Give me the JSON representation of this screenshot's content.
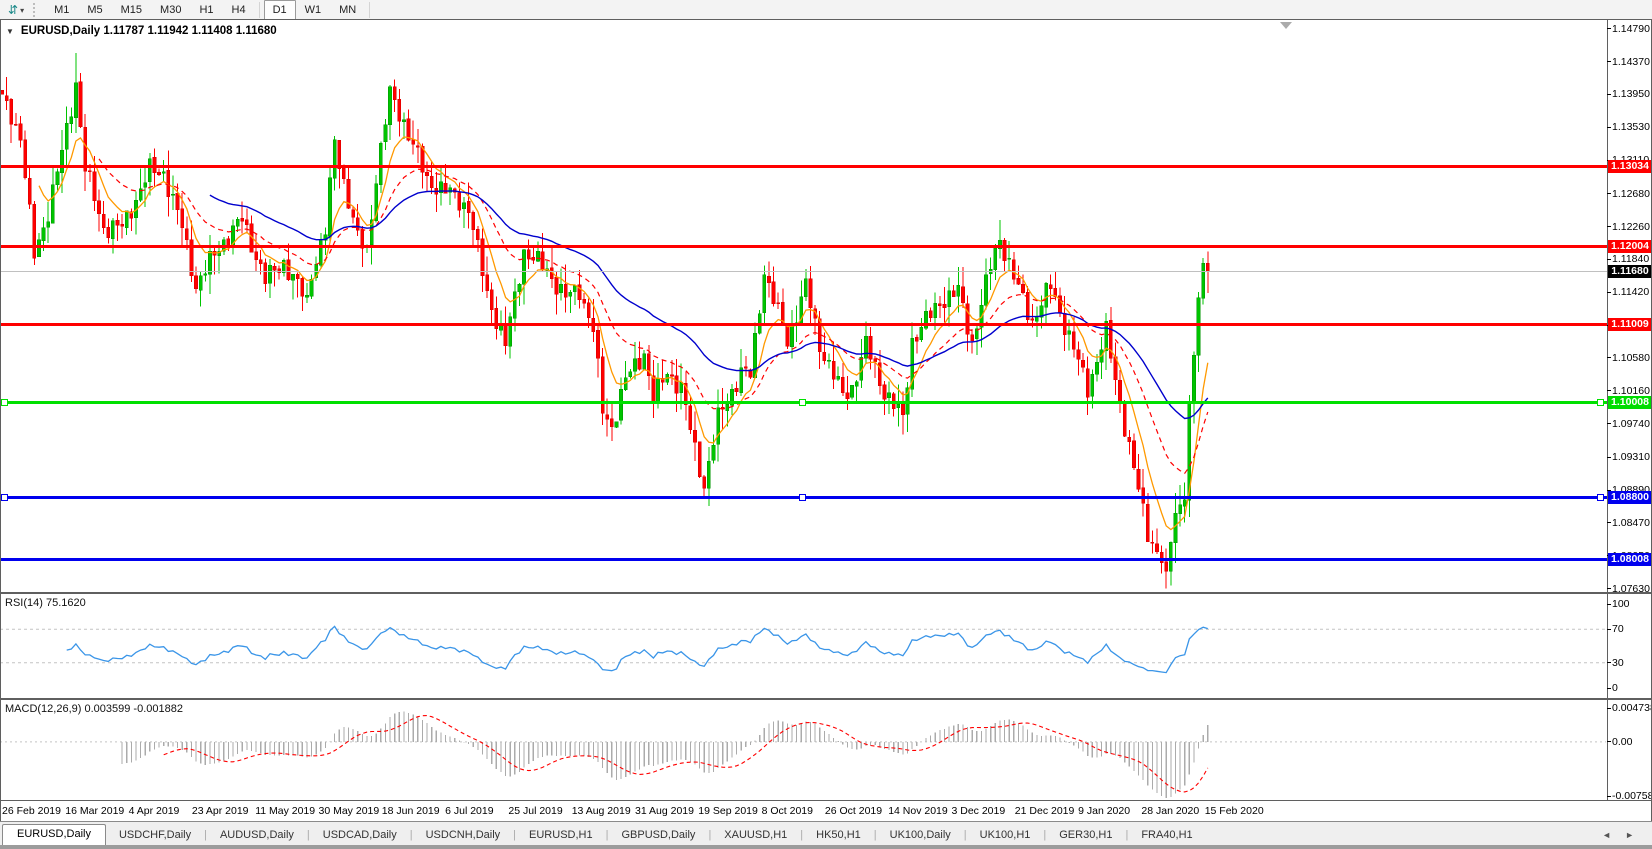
{
  "toolbar": {
    "chart_type_icon": "⇵",
    "dropdown_icon": "▾",
    "timeframes": [
      "M1",
      "M5",
      "M15",
      "M30",
      "H1",
      "H4",
      "D1",
      "W1",
      "MN"
    ],
    "active_timeframe": "D1"
  },
  "chart": {
    "collapse_icon": "▼",
    "title_text": "EURUSD,Daily  1.11787 1.11942 1.11408 1.11680",
    "price_axis_ticks": [
      "1.14790",
      "1.14370",
      "1.13950",
      "1.13530",
      "1.13110",
      "1.12680",
      "1.12260",
      "1.11840",
      "1.11420",
      "1.11000",
      "1.10580",
      "1.10160",
      "1.09740",
      "1.09310",
      "1.08890",
      "1.08470",
      "1.08050",
      "1.07630"
    ],
    "price_tags": [
      {
        "text": "1.13034",
        "value": 1.13034,
        "bg": "#FF0000",
        "fg": "#FFFFFF"
      },
      {
        "text": "1.12004",
        "value": 1.12004,
        "bg": "#FF0000",
        "fg": "#FFFFFF"
      },
      {
        "text": "1.11009",
        "value": 1.11009,
        "bg": "#FF0000",
        "fg": "#FFFFFF"
      },
      {
        "text": "1.10008",
        "value": 1.10008,
        "bg": "#00DD00",
        "fg": "#FFFFFF"
      },
      {
        "text": "1.08800",
        "value": 1.088,
        "bg": "#0000EE",
        "fg": "#FFFFFF"
      },
      {
        "text": "1.08008",
        "value": 1.08008,
        "bg": "#0000EE",
        "fg": "#FFFFFF"
      },
      {
        "text": "1.11680",
        "value": 1.1168,
        "bg": "#000000",
        "fg": "#FFFFFF"
      }
    ]
  },
  "rsi_panel": {
    "label": "RSI(14) 75.1620",
    "axis_labels": [
      "100",
      "70",
      "30",
      "0"
    ],
    "line_color": "#3A95E8"
  },
  "macd_panel": {
    "label": "MACD(12,26,9) 0.003599 -0.001882",
    "axis_labels": [
      "0.004738",
      "0.00",
      "-0.007584"
    ]
  },
  "tabbar": {
    "tabs": [
      "EURUSD,Daily",
      "USDCHF,Daily",
      "AUDUSD,Daily",
      "USDCAD,Daily",
      "USDCNH,Daily",
      "EURUSD,H1",
      "GBPUSD,Daily",
      "XAUUSD,H1",
      "HK50,H1",
      "UK100,Daily",
      "UK100,H1",
      "GER30,H1",
      "FRA40,H1"
    ],
    "active_tab": "EURUSD,Daily",
    "scroll_left_icon": "◄",
    "scroll_right_icon": "►"
  },
  "chart_data": {
    "type": "candlestick",
    "symbol": "EURUSD",
    "timeframe": "Daily",
    "last_ohlc": {
      "open": 1.11787,
      "high": 1.11942,
      "low": 1.11408,
      "close": 1.1168
    },
    "x_axis": {
      "labels": [
        "26 Feb 2019",
        "16 Mar 2019",
        "4 Apr 2019",
        "23 Apr 2019",
        "11 May 2019",
        "30 May 2019",
        "18 Jun 2019",
        "6 Jul 2019",
        "25 Jul 2019",
        "13 Aug 2019",
        "31 Aug 2019",
        "19 Sep 2019",
        "8 Oct 2019",
        "26 Oct 2019",
        "14 Nov 2019",
        "3 Dec 2019",
        "21 Dec 2019",
        "9 Jan 2020",
        "28 Jan 2020",
        "15 Feb 2020"
      ]
    },
    "y_axis": {
      "ticks": [
        1.1479,
        1.1437,
        1.1395,
        1.1353,
        1.1311,
        1.1268,
        1.1226,
        1.1184,
        1.1142,
        1.11,
        1.1058,
        1.1016,
        1.0974,
        1.0931,
        1.0889,
        1.0847,
        1.0805,
        1.0763
      ]
    },
    "horizontal_lines": [
      {
        "price": 1.13034,
        "color": "#FF0000",
        "width": 3,
        "handles": false
      },
      {
        "price": 1.12004,
        "color": "#FF0000",
        "width": 3,
        "handles": false
      },
      {
        "price": 1.11009,
        "color": "#FF0000",
        "width": 3,
        "handles": false
      },
      {
        "price": 1.10008,
        "color": "#00E000",
        "width": 3,
        "handles": true
      },
      {
        "price": 1.088,
        "color": "#0000EE",
        "width": 3,
        "handles": true
      },
      {
        "price": 1.08008,
        "color": "#0000EE",
        "width": 3,
        "handles": false
      }
    ],
    "current_price": {
      "value": 1.1168,
      "line_color": "#C0C0C0"
    },
    "candles": {
      "count": 262,
      "first_open": 1.14,
      "up_color": "#00C400",
      "up_stroke": "#009400",
      "down_color": "#FF0000",
      "down_stroke": "#D40000",
      "close_anchors": [
        [
          0,
          1.139
        ],
        [
          2,
          1.137
        ],
        [
          4,
          1.134
        ],
        [
          7,
          1.119
        ],
        [
          10,
          1.1245
        ],
        [
          13,
          1.132
        ],
        [
          16,
          1.141
        ],
        [
          18,
          1.13
        ],
        [
          22,
          1.1225
        ],
        [
          26,
          1.1225
        ],
        [
          32,
          1.1298
        ],
        [
          35,
          1.1295
        ],
        [
          39,
          1.1225
        ],
        [
          42,
          1.115
        ],
        [
          47,
          1.12
        ],
        [
          52,
          1.1235
        ],
        [
          57,
          1.1158
        ],
        [
          61,
          1.118
        ],
        [
          66,
          1.113
        ],
        [
          67,
          1.1168
        ],
        [
          70,
          1.122
        ],
        [
          72,
          1.1334
        ],
        [
          77,
          1.121
        ],
        [
          79,
          1.1195
        ],
        [
          81,
          1.129
        ],
        [
          84,
          1.1395
        ],
        [
          87,
          1.136
        ],
        [
          92,
          1.1285
        ],
        [
          97,
          1.1268
        ],
        [
          101,
          1.125
        ],
        [
          105,
          1.114
        ],
        [
          109,
          1.1075
        ],
        [
          113,
          1.1195
        ],
        [
          118,
          1.117
        ],
        [
          122,
          1.1135
        ],
        [
          125,
          1.1145
        ],
        [
          128,
          1.1095
        ],
        [
          130,
          1.099
        ],
        [
          132,
          1.097
        ],
        [
          135,
          1.103
        ],
        [
          139,
          1.1065
        ],
        [
          141,
          1.1005
        ],
        [
          144,
          1.104
        ],
        [
          147,
          1.102
        ],
        [
          150,
          1.094
        ],
        [
          152,
          1.0895
        ],
        [
          155,
          1.098
        ],
        [
          160,
          1.104
        ],
        [
          162,
          1.1035
        ],
        [
          165,
          1.117
        ],
        [
          166,
          1.115
        ],
        [
          170,
          1.108
        ],
        [
          174,
          1.115
        ],
        [
          177,
          1.1075
        ],
        [
          182,
          1.101
        ],
        [
          184,
          1.102
        ],
        [
          187,
          1.1075
        ],
        [
          191,
          1.1015
        ],
        [
          195,
          1.098
        ],
        [
          197,
          1.108
        ],
        [
          203,
          1.113
        ],
        [
          207,
          1.1143
        ],
        [
          210,
          1.1078
        ],
        [
          214,
          1.1175
        ],
        [
          216,
          1.1212
        ],
        [
          219,
          1.116
        ],
        [
          223,
          1.1105
        ],
        [
          227,
          1.115
        ],
        [
          231,
          1.1085
        ],
        [
          235,
          1.102
        ],
        [
          239,
          1.109
        ],
        [
          242,
          1.1
        ],
        [
          245,
          1.0915
        ],
        [
          248,
          1.0835
        ],
        [
          252,
          1.0785
        ],
        [
          254,
          1.086
        ],
        [
          256,
          1.088
        ],
        [
          257,
          1.1
        ],
        [
          258,
          1.106
        ],
        [
          259,
          1.1135
        ],
        [
          260,
          1.11787
        ],
        [
          261,
          1.1168
        ]
      ],
      "pinned_closes": {
        "252": 1.0785,
        "260": 1.11787,
        "261": 1.1168
      },
      "wick_overrides": {
        "16": {
          "high": 1.1448
        },
        "152": {
          "low": 1.0879
        },
        "252": {
          "low": 1.0763
        },
        "259": {
          "high": 1.1142
        },
        "260": {
          "high": 1.1186
        }
      }
    },
    "moving_averages": [
      {
        "name": "fast",
        "period": 8,
        "color": "#FF9900",
        "dash": "",
        "width": 1.3
      },
      {
        "name": "medium",
        "period": 21,
        "color": "#FF0000",
        "dash": "5 4",
        "width": 1.2
      },
      {
        "name": "slow",
        "period": 45,
        "color": "#0000CD",
        "dash": "",
        "width": 1.4
      }
    ],
    "rsi": {
      "period": 14,
      "current": 75.162,
      "levels": [
        70,
        30
      ],
      "scale": [
        0,
        100
      ],
      "color": "#3A95E8"
    },
    "macd": {
      "fast": 12,
      "slow": 26,
      "signal": 9,
      "current_main": 0.003599,
      "current_signal": -0.001882,
      "axis_max": 0.004738,
      "axis_min": -0.007584,
      "histogram_color": "#ABABAB",
      "signal_color": "#FF0000"
    }
  }
}
